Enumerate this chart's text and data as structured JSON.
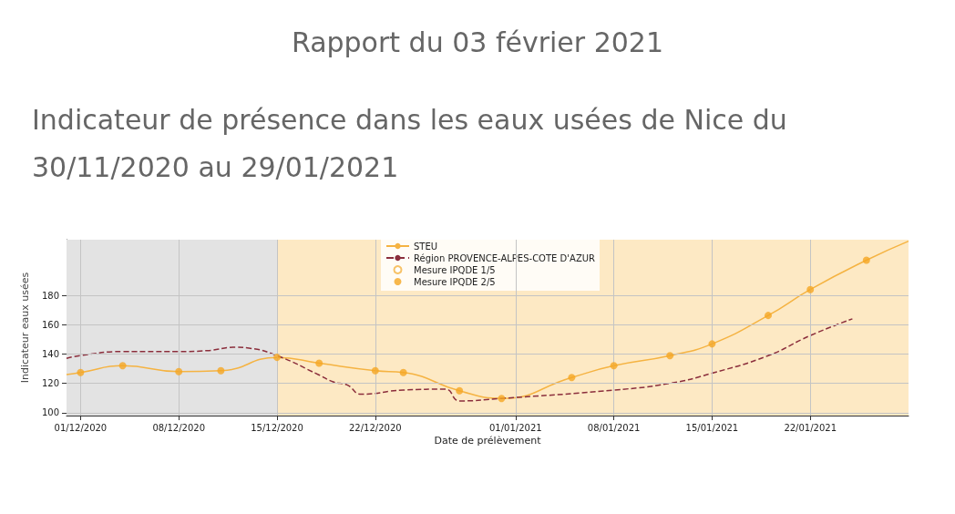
{
  "chart_data": {
    "type": "line",
    "title": "Rapport du 03 février 2021",
    "subtitle": "Indicateur de présence dans les eaux usées de Nice du 30/11/2020 au 29/01/2021",
    "xlabel": "Date de prélèvement",
    "ylabel": "Indicateur eaux usées",
    "xlim": [
      "2020-11-30",
      "2021-01-29"
    ],
    "ylim": [
      98,
      218
    ],
    "xticks": [
      {
        "value": "2020-12-01",
        "label": "01/12/2020"
      },
      {
        "value": "2020-12-08",
        "label": "08/12/2020"
      },
      {
        "value": "2020-12-15",
        "label": "15/12/2020"
      },
      {
        "value": "2020-12-22",
        "label": "22/12/2020"
      },
      {
        "value": "2021-01-01",
        "label": "01/01/2021"
      },
      {
        "value": "2021-01-08",
        "label": "08/01/2021"
      },
      {
        "value": "2021-01-15",
        "label": "15/01/2021"
      },
      {
        "value": "2021-01-22",
        "label": "22/01/2021"
      }
    ],
    "yticks": [
      100,
      120,
      140,
      160,
      180
    ],
    "grid": true,
    "legend": "top",
    "marker": "none",
    "line_style": "solid",
    "bands": [
      {
        "axis": "x",
        "from": "2020-11-30",
        "to": "2020-12-15",
        "color": "#e3e3e3"
      },
      {
        "axis": "x",
        "from": "2020-12-15",
        "to": "2021-01-29",
        "color": "#fde9c4"
      }
    ],
    "series": [
      {
        "name": "STEU",
        "color": "#f5b342",
        "x": [
          "2020-11-30",
          "2020-12-01",
          "2020-12-04",
          "2020-12-08",
          "2020-12-11",
          "2020-12-15",
          "2020-12-18",
          "2020-12-22",
          "2020-12-24",
          "2020-12-28",
          "2020-12-31",
          "2021-01-05",
          "2021-01-08",
          "2021-01-12",
          "2021-01-15",
          "2021-01-19",
          "2021-01-22",
          "2021-01-26",
          "2021-01-29"
        ],
        "values": [
          126,
          127.4,
          132,
          128,
          128.6,
          137.7,
          133.7,
          128.6,
          127.4,
          114.9,
          109.7,
          124,
          132,
          138.9,
          146.9,
          166.3,
          184,
          204,
          217
        ]
      },
      {
        "name": "Région PROVENCE-ALPES-COTE D'AZUR",
        "color": "#8b2e3c",
        "line_style": "dashed",
        "x": [
          "2020-11-30",
          "2020-12-01",
          "2020-12-04",
          "2020-12-08",
          "2020-12-10",
          "2020-12-12",
          "2020-12-13",
          "2020-12-15",
          "2020-12-18",
          "2020-12-19",
          "2020-12-20",
          "2020-12-21",
          "2020-12-24",
          "2020-12-27",
          "2020-12-28",
          "2020-12-31",
          "2021-01-08",
          "2021-01-12",
          "2021-01-15",
          "2021-01-19",
          "2021-01-22",
          "2021-01-25"
        ],
        "values": [
          137,
          139,
          141.7,
          141.7,
          142.3,
          144.6,
          144,
          138.9,
          125.7,
          121,
          118.9,
          112.6,
          115.4,
          116,
          108,
          109.7,
          115.4,
          120,
          126.9,
          138.9,
          152.6,
          164
        ]
      },
      {
        "name": "Mesure IPQDE 1/5",
        "type": "scatter",
        "color": "#f5b342",
        "marker": "emptyCircle"
      },
      {
        "name": "Mesure IPQDE 2/5",
        "type": "scatter",
        "color": "#f5a623",
        "marker": "circle",
        "x": [
          "2020-12-01",
          "2020-12-04",
          "2020-12-08",
          "2020-12-11",
          "2020-12-15",
          "2020-12-18",
          "2020-12-22",
          "2020-12-24",
          "2020-12-28",
          "2020-12-31",
          "2021-01-05",
          "2021-01-08",
          "2021-01-12",
          "2021-01-15",
          "2021-01-19",
          "2021-01-22",
          "2021-01-26"
        ],
        "values": [
          127.4,
          132,
          128,
          128.6,
          137.7,
          133.7,
          128.6,
          127.4,
          114.9,
          109.7,
          124,
          132,
          138.9,
          146.9,
          166.3,
          184,
          204
        ]
      }
    ]
  }
}
